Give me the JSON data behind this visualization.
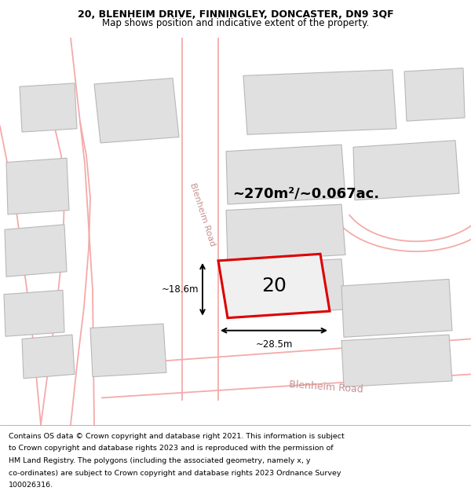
{
  "title_line1": "20, BLENHEIM DRIVE, FINNINGLEY, DONCASTER, DN9 3QF",
  "title_line2": "Map shows position and indicative extent of the property.",
  "footer_lines": [
    "Contains OS data © Crown copyright and database right 2021. This information is subject",
    "to Crown copyright and database rights 2023 and is reproduced with the permission of",
    "HM Land Registry. The polygons (including the associated geometry, namely x, y",
    "co-ordinates) are subject to Crown copyright and database rights 2023 Ordnance Survey",
    "100026316."
  ],
  "map_bg": "#f0f0f0",
  "building_fill": "#e0e0e0",
  "building_edge": "#b8b8b8",
  "road_white": "#ffffff",
  "road_pink": "#f4aaaa",
  "highlight_red": "#dd0000",
  "area_text": "~270m²/~0.067ac.",
  "label_20": "20",
  "dim_width": "~28.5m",
  "dim_height": "~18.6m",
  "road_label_color": "#c89090",
  "road_label_diag": "Blenheim Road",
  "road_label_vert": "Blenheim Road",
  "title_fontsize": 9,
  "subtitle_fontsize": 8.5,
  "footer_fontsize": 6.8,
  "area_fontsize": 13,
  "label_fontsize": 18,
  "dim_fontsize": 8.5
}
